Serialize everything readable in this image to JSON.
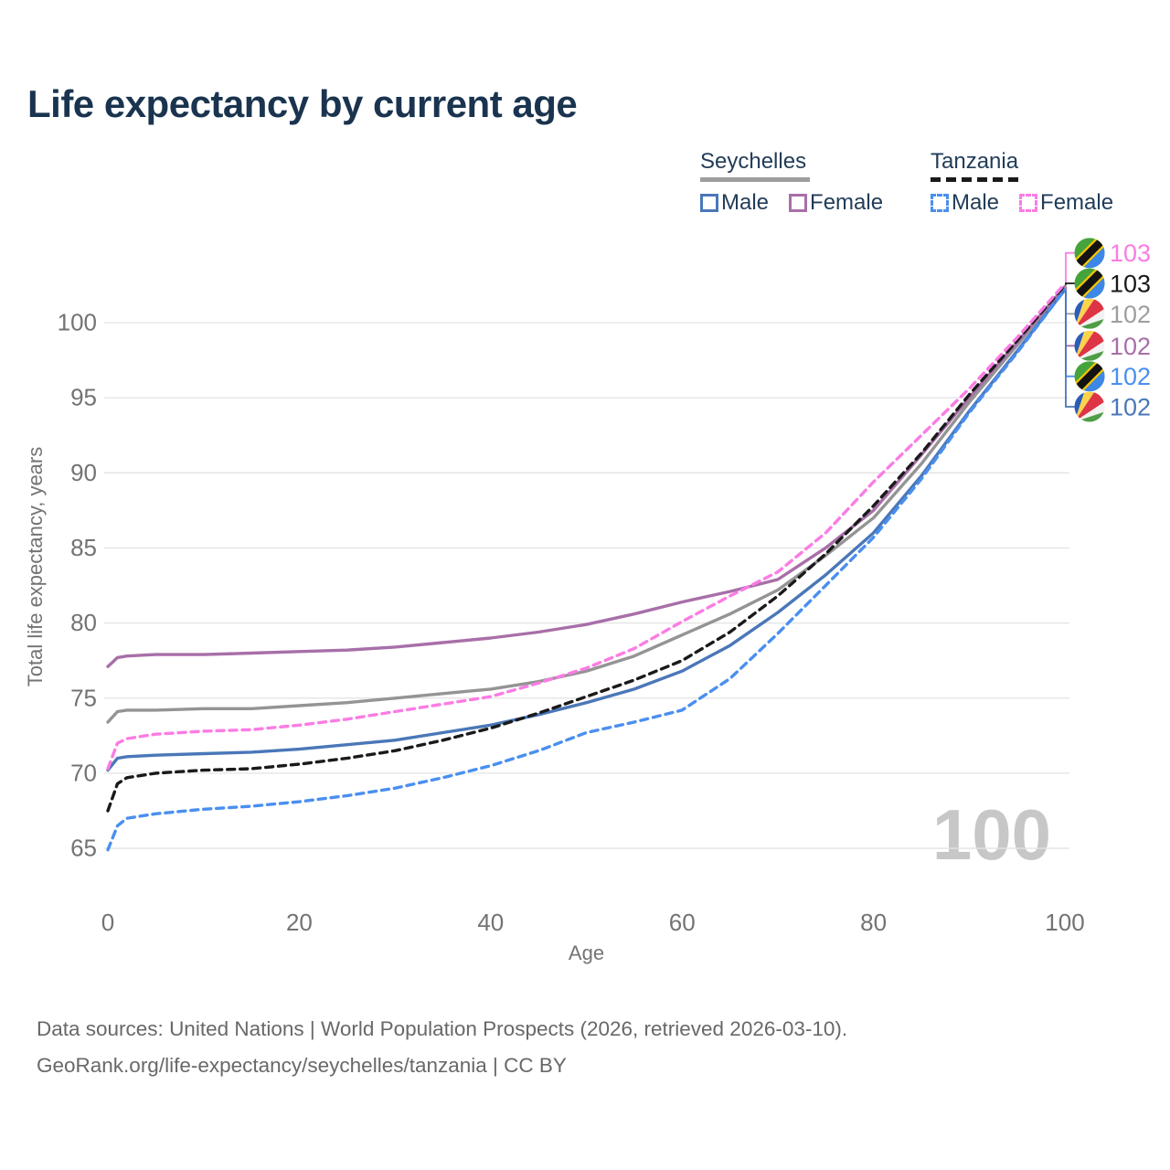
{
  "title": "Life expectancy by current age",
  "legend": {
    "groups": [
      {
        "label": "Seychelles",
        "underline_style": "solid",
        "underline_color": "#9e9e9e",
        "items": [
          {
            "label": "Male",
            "color": "#4a77b8",
            "dashed": false
          },
          {
            "label": "Female",
            "color": "#a86fa8",
            "dashed": false
          }
        ]
      },
      {
        "label": "Tanzania",
        "underline_style": "dashed",
        "underline_color": "#1a1a1a",
        "items": [
          {
            "label": "Male",
            "color": "#4a8ff0",
            "dashed": true
          },
          {
            "label": "Female",
            "color": "#fb7ce4",
            "dashed": true
          }
        ]
      }
    ]
  },
  "chart_data": {
    "type": "line",
    "title": "Life expectancy by current age",
    "xlabel": "Age",
    "ylabel": "Total life expectancy, years",
    "x_ticks": [
      0,
      20,
      40,
      60,
      80,
      100
    ],
    "y_ticks": [
      65,
      70,
      75,
      80,
      85,
      90,
      95,
      100
    ],
    "xlim": [
      0,
      100
    ],
    "ylim": [
      63.5,
      103.5
    ],
    "grid": "horizontal",
    "legend_position": "top-right",
    "watermark": "100",
    "x": [
      0,
      1,
      2,
      5,
      10,
      15,
      20,
      25,
      30,
      35,
      40,
      45,
      50,
      55,
      60,
      65,
      70,
      75,
      80,
      85,
      90,
      95,
      100
    ],
    "series": [
      {
        "name": "Seychelles All",
        "country": "Seychelles",
        "sex": "All",
        "color": "#949494",
        "dashed": false,
        "flag": "seychelles",
        "end_label": "102",
        "values": [
          73.4,
          74.1,
          74.2,
          74.2,
          74.3,
          74.3,
          74.5,
          74.7,
          75.0,
          75.3,
          75.6,
          76.1,
          76.8,
          77.8,
          79.2,
          80.6,
          82.2,
          84.5,
          87.0,
          90.6,
          94.7,
          98.5,
          102.4
        ]
      },
      {
        "name": "Seychelles Female",
        "country": "Seychelles",
        "sex": "Female",
        "color": "#a86fa8",
        "dashed": false,
        "flag": "seychelles",
        "end_label": "102",
        "values": [
          77.1,
          77.7,
          77.8,
          77.9,
          77.9,
          78.0,
          78.1,
          78.2,
          78.4,
          78.7,
          79.0,
          79.4,
          79.9,
          80.6,
          81.4,
          82.1,
          82.9,
          85.0,
          87.5,
          91.2,
          95.0,
          98.7,
          102.4
        ]
      },
      {
        "name": "Seychelles Male",
        "country": "Seychelles",
        "sex": "Male",
        "color": "#4a77b8",
        "dashed": false,
        "flag": "seychelles",
        "end_label": "102",
        "values": [
          70.2,
          71.0,
          71.1,
          71.2,
          71.3,
          71.4,
          71.6,
          71.9,
          72.2,
          72.7,
          73.2,
          73.9,
          74.7,
          75.6,
          76.8,
          78.5,
          80.7,
          83.2,
          86.0,
          89.8,
          94.1,
          98.1,
          102.2
        ]
      },
      {
        "name": "Tanzania All",
        "country": "Tanzania",
        "sex": "All",
        "color": "#1a1a1a",
        "dashed": true,
        "flag": "tanzania",
        "end_label": "103",
        "values": [
          67.5,
          69.3,
          69.7,
          70.0,
          70.2,
          70.3,
          70.6,
          71.0,
          71.5,
          72.2,
          73.0,
          74.0,
          75.1,
          76.2,
          77.5,
          79.4,
          81.8,
          84.6,
          87.8,
          91.3,
          95.2,
          98.8,
          102.5
        ]
      },
      {
        "name": "Tanzania Male",
        "country": "Tanzania",
        "sex": "Male",
        "color": "#4a8ff0",
        "dashed": true,
        "flag": "tanzania",
        "end_label": "102",
        "values": [
          64.9,
          66.5,
          67.0,
          67.3,
          67.6,
          67.8,
          68.1,
          68.5,
          69.0,
          69.7,
          70.5,
          71.5,
          72.7,
          73.4,
          74.2,
          76.3,
          79.3,
          82.5,
          85.7,
          89.6,
          94.0,
          98.0,
          102.2
        ]
      },
      {
        "name": "Tanzania Female",
        "country": "Tanzania",
        "sex": "Female",
        "color": "#fb7ce4",
        "dashed": true,
        "flag": "tanzania",
        "end_label": "103",
        "values": [
          70.3,
          72.0,
          72.3,
          72.6,
          72.8,
          72.9,
          73.2,
          73.6,
          74.1,
          74.6,
          75.1,
          76.0,
          77.0,
          78.3,
          80.1,
          81.8,
          83.4,
          86.0,
          89.4,
          92.5,
          95.6,
          99.0,
          102.6
        ]
      }
    ],
    "end_labels": [
      {
        "value": "103",
        "color": "#fb7ce4",
        "flag": "tanzania",
        "series": "Tanzania Female"
      },
      {
        "value": "103",
        "color": "#1a1a1a",
        "flag": "tanzania",
        "series": "Tanzania All"
      },
      {
        "value": "102",
        "color": "#9e9e9e",
        "flag": "seychelles",
        "series": "Seychelles All"
      },
      {
        "value": "102",
        "color": "#a86fa8",
        "flag": "seychelles",
        "series": "Seychelles Female"
      },
      {
        "value": "102",
        "color": "#4a8ff0",
        "flag": "tanzania",
        "series": "Tanzania Male"
      },
      {
        "value": "102",
        "color": "#4a77b8",
        "flag": "seychelles",
        "series": "Seychelles Male"
      }
    ]
  },
  "footer": {
    "line1": "Data sources: United Nations | World Population Prospects (2026, retrieved 2026-03-10).",
    "line2": "GeoRank.org/life-expectancy/seychelles/tanzania | CC BY"
  },
  "colors": {
    "title_text": "#1a344f",
    "legend_text": "#223c58",
    "tick_text": "#737373",
    "gridline": "#e3e3e3",
    "watermark": "#c7c7c7",
    "footer_text": "#686868"
  }
}
